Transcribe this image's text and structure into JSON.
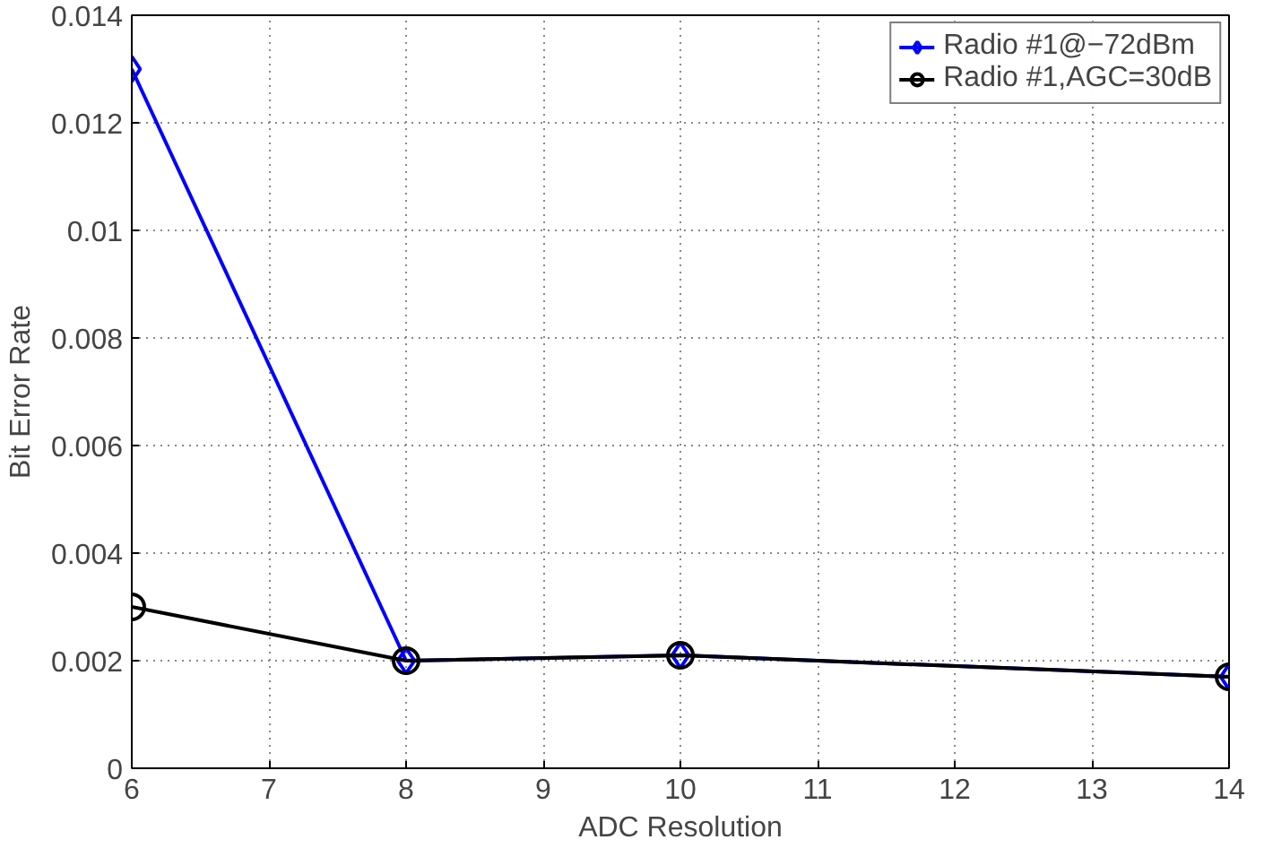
{
  "chart_data": {
    "type": "line",
    "xlabel": "ADC Resolution",
    "ylabel": "Bit Error Rate",
    "x": [
      6,
      8,
      10,
      14
    ],
    "series": [
      {
        "name": "Radio #1@−72dBm",
        "color": "#0000ff",
        "marker": "diamond",
        "values": [
          0.013,
          0.002,
          0.0021,
          0.0017
        ]
      },
      {
        "name": "Radio #1,AGC=30dB",
        "color": "#000000",
        "marker": "circle",
        "values": [
          0.003,
          0.002,
          0.0021,
          0.0017
        ]
      }
    ],
    "xlim": [
      6,
      14
    ],
    "xticks": [
      6,
      7,
      8,
      9,
      10,
      11,
      12,
      13,
      14
    ],
    "ylim": [
      0,
      0.014
    ],
    "yticks": [
      0,
      0.002,
      0.004,
      0.006,
      0.008,
      0.01,
      0.012,
      0.014
    ],
    "grid": true,
    "legend": "top right",
    "line_style": "solid"
  }
}
